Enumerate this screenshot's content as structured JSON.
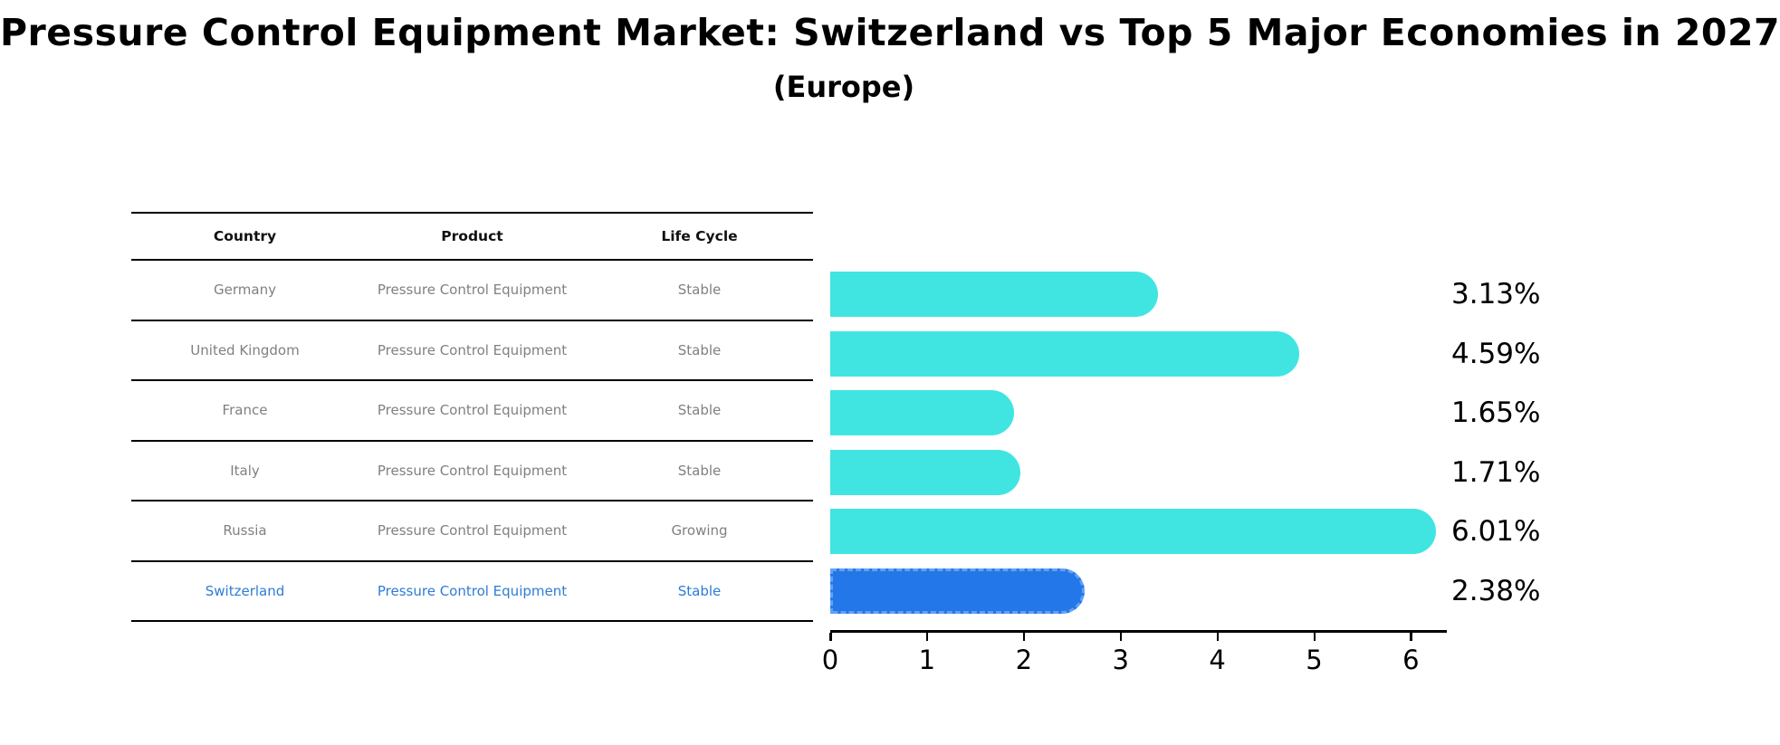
{
  "title": "Pressure Control Equipment Market: Switzerland vs Top 5 Major Economies in 2027",
  "subtitle": "(Europe)",
  "table": {
    "columns": [
      "Country",
      "Product",
      "Life Cycle"
    ],
    "rows": [
      {
        "country": "Germany",
        "product": "Pressure Control Equipment",
        "life_cycle": "Stable",
        "highlight": false
      },
      {
        "country": "United Kingdom",
        "product": "Pressure Control Equipment",
        "life_cycle": "Stable",
        "highlight": false
      },
      {
        "country": "France",
        "product": "Pressure Control Equipment",
        "life_cycle": "Stable",
        "highlight": false
      },
      {
        "country": "Italy",
        "product": "Pressure Control Equipment",
        "life_cycle": "Stable",
        "highlight": false
      },
      {
        "country": "Russia",
        "product": "Pressure Control Equipment",
        "life_cycle": "Growing",
        "highlight": false
      },
      {
        "country": "Switzerland",
        "product": "Pressure Control Equipment",
        "life_cycle": "Stable",
        "highlight": true
      }
    ]
  },
  "chart_data": {
    "type": "bar",
    "orientation": "horizontal",
    "title": "Pressure Control Equipment Market: Switzerland vs Top 5 Major Economies in 2027",
    "subtitle": "(Europe)",
    "categories": [
      "Germany",
      "United Kingdom",
      "France",
      "Italy",
      "Russia",
      "Switzerland"
    ],
    "values": [
      3.13,
      4.59,
      1.65,
      1.71,
      6.01,
      2.38
    ],
    "value_labels": [
      "3.13%",
      "4.59%",
      "1.65%",
      "1.71%",
      "6.01%",
      "2.38%"
    ],
    "highlight_index": 5,
    "xlabel": "",
    "ylabel": "",
    "xticks": [
      "0",
      "1",
      "2",
      "3",
      "4",
      "5",
      "6"
    ],
    "xlim": [
      0,
      6.35
    ],
    "grid": false,
    "legend": "none",
    "colors": {
      "bar": "#40E5E2",
      "highlight_bar": "#2477E8",
      "highlight_bar_border": "#63A1F2",
      "value_label": "#000000",
      "row_text": "#808080",
      "highlight_row_text": "#2E7CD4",
      "header_text": "#111111",
      "axis": "#000000"
    }
  }
}
